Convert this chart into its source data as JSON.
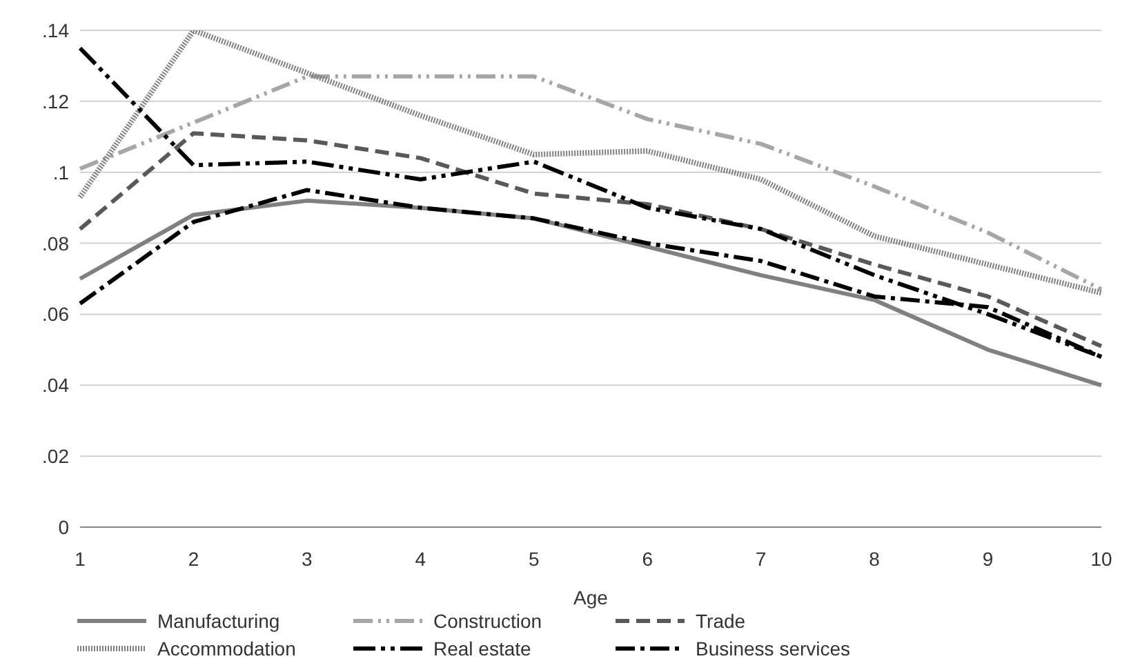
{
  "chart_data": {
    "type": "line",
    "xlabel": "Age",
    "categories": [
      "1",
      "2",
      "3",
      "4",
      "5",
      "6",
      "7",
      "8",
      "9",
      "10"
    ],
    "series": [
      {
        "name": "Manufacturing",
        "color": "#808080",
        "line_style": "solid",
        "values": [
          0.07,
          0.088,
          0.092,
          0.09,
          0.087,
          0.079,
          0.071,
          0.064,
          0.05,
          0.04
        ]
      },
      {
        "name": "Construction",
        "color": "#a6a6a6",
        "line_style": "dashed",
        "values": [
          0.101,
          0.114,
          0.127,
          0.127,
          0.127,
          0.115,
          0.108,
          0.096,
          0.083,
          0.067
        ]
      },
      {
        "name": "Trade",
        "color": "#595959",
        "line_style": "dashed",
        "values": [
          0.084,
          0.111,
          0.109,
          0.104,
          0.094,
          0.091,
          0.084,
          0.074,
          0.065,
          0.051
        ]
      },
      {
        "name": "Accommodation",
        "color": "#7f7f7f",
        "line_style": "dotted",
        "values": [
          0.093,
          0.14,
          0.128,
          0.116,
          0.105,
          0.106,
          0.098,
          0.082,
          0.074,
          0.066
        ]
      },
      {
        "name": "Real estate",
        "color": "#000000",
        "line_style": "dashed",
        "values": [
          0.135,
          0.102,
          0.103,
          0.098,
          0.103,
          0.09,
          0.084,
          0.071,
          0.06,
          0.048
        ]
      },
      {
        "name": "Business services",
        "color": "#000000",
        "line_style": "dashed",
        "values": [
          0.063,
          0.086,
          0.095,
          0.09,
          0.087,
          0.08,
          0.075,
          0.065,
          0.062,
          0.048
        ]
      }
    ],
    "ylim": [
      0,
      0.14
    ],
    "yticks": [
      {
        "value": 0,
        "label": "0"
      },
      {
        "value": 0.02,
        "label": ".02"
      },
      {
        "value": 0.04,
        "label": ".04"
      },
      {
        "value": 0.06,
        "label": ".06"
      },
      {
        "value": 0.08,
        "label": ".08"
      },
      {
        "value": 0.1,
        "label": ".1"
      },
      {
        "value": 0.12,
        "label": ".12"
      },
      {
        "value": 0.14,
        "label": ".14"
      }
    ],
    "grid": "y",
    "legend": "bottom",
    "marker": "none"
  }
}
